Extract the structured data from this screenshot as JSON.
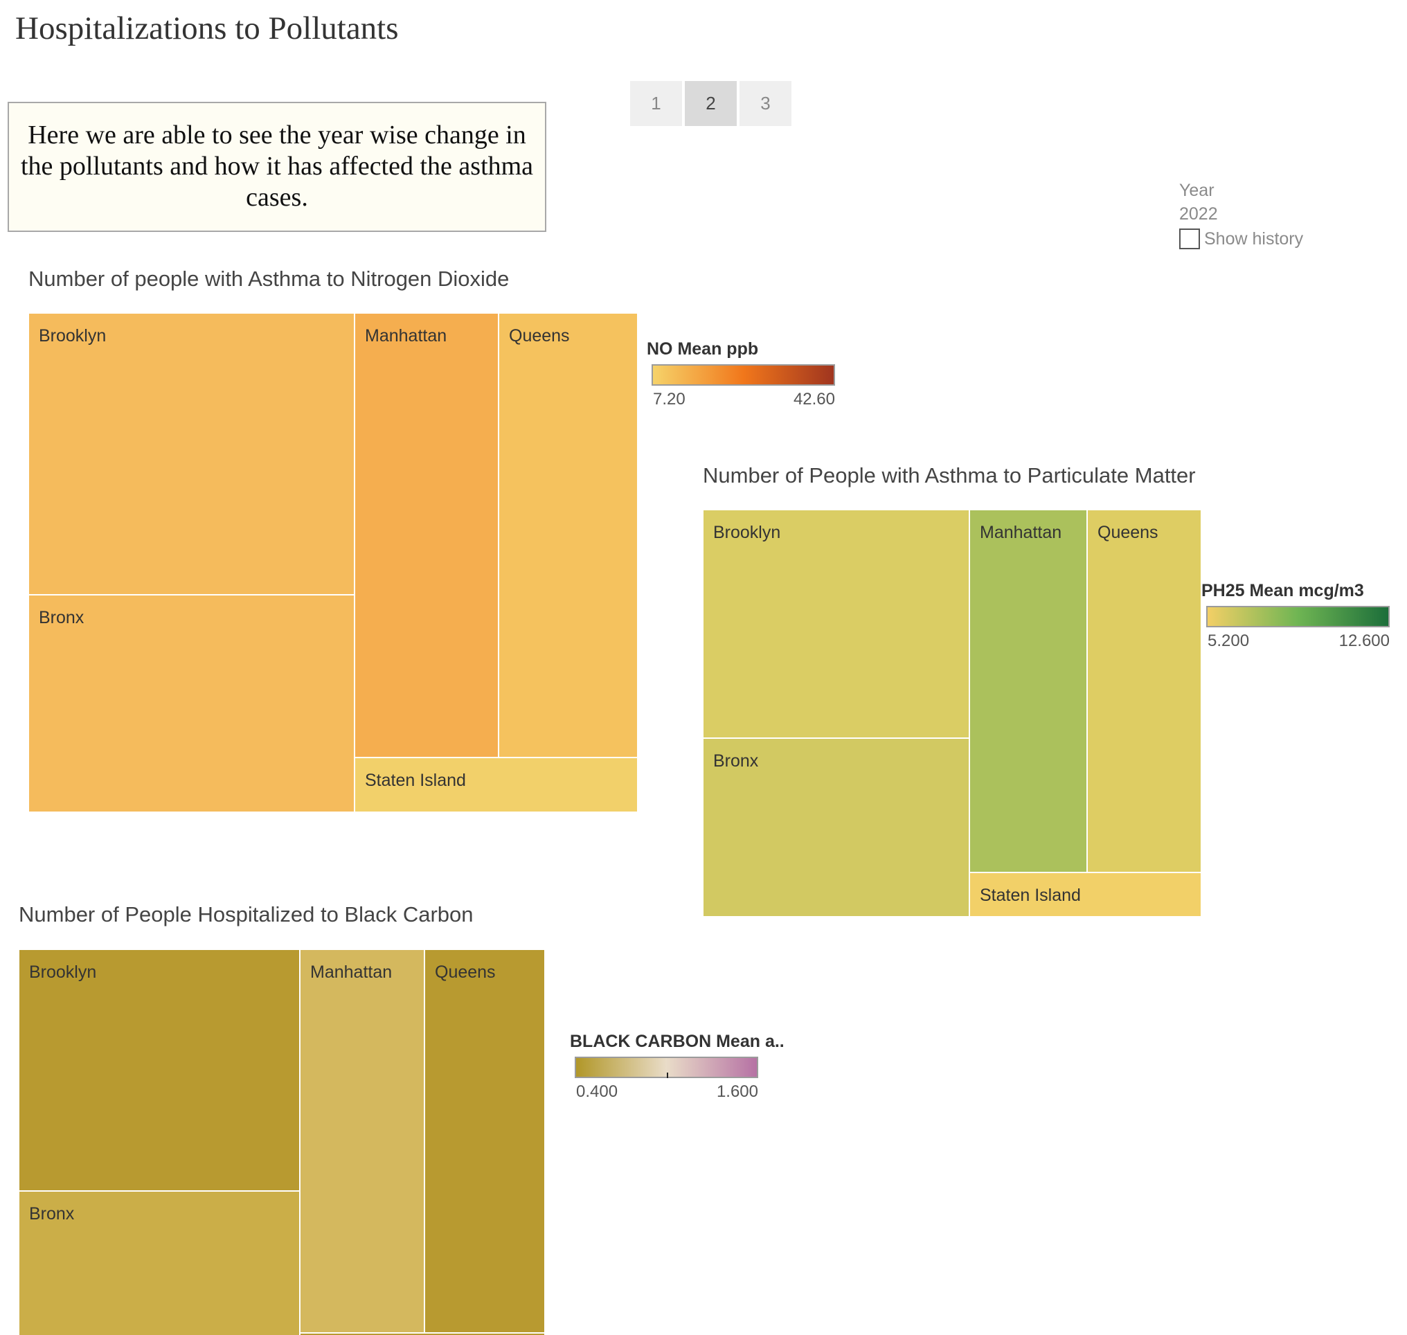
{
  "title": "Hospitalizations to Pollutants",
  "caption": "Here we are able to see the year wise change in the pollutants and how it has affected the asthma cases.",
  "pager": {
    "pages": [
      "1",
      "2",
      "3"
    ],
    "active": "2"
  },
  "filter": {
    "label": "Year",
    "value": "2022",
    "show_history_label": "Show history",
    "show_history_checked": false
  },
  "chart_data": [
    {
      "type": "treemap",
      "title": "Number of people with Asthma to Nitrogen Dioxide",
      "color_measure": "NO Mean ppb",
      "color_range": [
        "7.20",
        "42.60"
      ],
      "palette": [
        "#f6d36a",
        "#f1771b",
        "#a0351f"
      ],
      "cells": [
        {
          "label": "Brooklyn",
          "color": "#f5bb5c"
        },
        {
          "label": "Bronx",
          "color": "#f5bb5c"
        },
        {
          "label": "Manhattan",
          "color": "#f5ae4f"
        },
        {
          "label": "Queens",
          "color": "#f5c25e"
        },
        {
          "label": "Staten Island",
          "color": "#f2d06a"
        }
      ]
    },
    {
      "type": "treemap",
      "title": "Number of People with Asthma to Particulate Matter",
      "color_measure": "PH25 Mean mcg/m3",
      "color_range": [
        "5.200",
        "12.600"
      ],
      "palette": [
        "#f3cf66",
        "#6fb553",
        "#1c6e3a"
      ],
      "cells": [
        {
          "label": "Brooklyn",
          "color": "#dacd64"
        },
        {
          "label": "Bronx",
          "color": "#d2c962"
        },
        {
          "label": "Manhattan",
          "color": "#abc15c"
        },
        {
          "label": "Queens",
          "color": "#decd63"
        },
        {
          "label": "Staten Island",
          "color": "#f2d068"
        }
      ]
    },
    {
      "type": "treemap",
      "title": "Number of People Hospitalized to Black Carbon",
      "color_measure": "BLACK CARBON Mean a..",
      "color_range": [
        "0.400",
        "1.600"
      ],
      "palette": [
        "#b19728",
        "#e9dcc8",
        "#b672a4"
      ],
      "cells": [
        {
          "label": "Brooklyn",
          "color": "#b89a30"
        },
        {
          "label": "Bronx",
          "color": "#cbae48"
        },
        {
          "label": "Manhattan",
          "color": "#d4b85e"
        },
        {
          "label": "Queens",
          "color": "#b89a30"
        },
        {
          "label": "",
          "color": "#b89a30"
        }
      ]
    }
  ]
}
